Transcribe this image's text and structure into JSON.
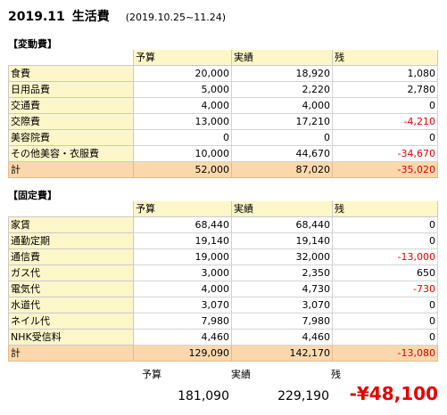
{
  "title": {
    "month": "2019.11",
    "name": "生活費",
    "period": "(2019.10.25~11.24)"
  },
  "columns": {
    "budget": "予算",
    "actual": "実績",
    "remaining": "残"
  },
  "variable": {
    "heading": "【変動費】",
    "rows": [
      {
        "label": "食費",
        "budget": "20,000",
        "actual": "18,920",
        "remaining": "1,080",
        "negative": false
      },
      {
        "label": "日用品費",
        "budget": "5,000",
        "actual": "2,220",
        "remaining": "2,780",
        "negative": false
      },
      {
        "label": "交通費",
        "budget": "4,000",
        "actual": "4,000",
        "remaining": "0",
        "negative": false
      },
      {
        "label": "交際費",
        "budget": "13,000",
        "actual": "17,210",
        "remaining": "-4,210",
        "negative": true
      },
      {
        "label": "美容院費",
        "budget": "0",
        "actual": "0",
        "remaining": "0",
        "negative": false
      },
      {
        "label": "その他美容・衣服費",
        "budget": "10,000",
        "actual": "44,670",
        "remaining": "-34,670",
        "negative": true
      }
    ],
    "total": {
      "label": "計",
      "budget": "52,000",
      "actual": "87,020",
      "remaining": "-35,020",
      "negative": true
    }
  },
  "fixed": {
    "heading": "【固定費】",
    "rows": [
      {
        "label": "家賃",
        "budget": "68,440",
        "actual": "68,440",
        "remaining": "0",
        "negative": false
      },
      {
        "label": "通勤定期",
        "budget": "19,140",
        "actual": "19,140",
        "remaining": "0",
        "negative": false
      },
      {
        "label": "通信費",
        "budget": "19,000",
        "actual": "32,000",
        "remaining": "-13,000",
        "negative": true
      },
      {
        "label": "ガス代",
        "budget": "3,000",
        "actual": "2,350",
        "remaining": "650",
        "negative": false
      },
      {
        "label": "電気代",
        "budget": "4,000",
        "actual": "4,730",
        "remaining": "-730",
        "negative": true
      },
      {
        "label": "水道代",
        "budget": "3,070",
        "actual": "3,070",
        "remaining": "0",
        "negative": false
      },
      {
        "label": "ネイル代",
        "budget": "7,980",
        "actual": "7,980",
        "remaining": "0",
        "negative": false
      },
      {
        "label": "NHK受信料",
        "budget": "4,460",
        "actual": "4,460",
        "remaining": "0",
        "negative": false
      }
    ],
    "total": {
      "label": "計",
      "budget": "129,090",
      "actual": "142,170",
      "remaining": "-13,080",
      "negative": true
    }
  },
  "grand_total": {
    "budget": "181,090",
    "actual": "229,190",
    "remaining": "-¥48,100"
  },
  "colors": {
    "label_bg": "#fdf6c9",
    "total_bg": "#fbd8ac",
    "negative": "#e60000"
  }
}
